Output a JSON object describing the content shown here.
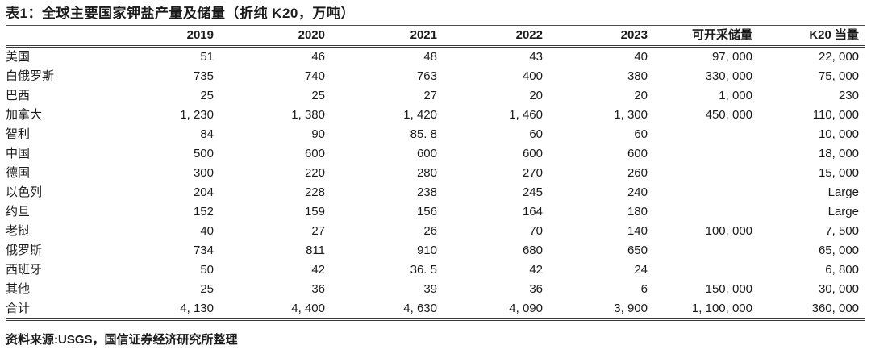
{
  "title": "表1：全球主要国家钾盐产量及储量（折纯 K20，万吨）",
  "source_note": "资料来源:USGS，国信证券经济研究所整理",
  "table": {
    "columns": [
      "",
      "2019",
      "2020",
      "2021",
      "2022",
      "2023",
      "可开采储量",
      "K20 当量"
    ],
    "rows": [
      {
        "name": "美国",
        "values": [
          "51",
          "46",
          "48",
          "43",
          "40",
          "97, 000",
          "22, 000"
        ]
      },
      {
        "name": "白俄罗斯",
        "values": [
          "735",
          "740",
          "763",
          "400",
          "380",
          "330, 000",
          "75, 000"
        ]
      },
      {
        "name": "巴西",
        "values": [
          "25",
          "25",
          "27",
          "20",
          "20",
          "1, 000",
          "230"
        ]
      },
      {
        "name": "加拿大",
        "values": [
          "1, 230",
          "1, 380",
          "1, 420",
          "1, 460",
          "1, 300",
          "450, 000",
          "110, 000"
        ]
      },
      {
        "name": "智利",
        "values": [
          "84",
          "90",
          "85. 8",
          "60",
          "60",
          "",
          "10, 000"
        ]
      },
      {
        "name": "中国",
        "values": [
          "500",
          "600",
          "600",
          "600",
          "600",
          "",
          "18, 000"
        ]
      },
      {
        "name": "德国",
        "values": [
          "300",
          "220",
          "280",
          "270",
          "260",
          "",
          "15, 000"
        ]
      },
      {
        "name": "以色列",
        "values": [
          "204",
          "228",
          "238",
          "245",
          "240",
          "",
          "Large"
        ]
      },
      {
        "name": "约旦",
        "values": [
          "152",
          "159",
          "156",
          "164",
          "180",
          "",
          "Large"
        ]
      },
      {
        "name": "老挝",
        "values": [
          "40",
          "27",
          "26",
          "70",
          "140",
          "100, 000",
          "7, 500"
        ]
      },
      {
        "name": "俄罗斯",
        "values": [
          "734",
          "811",
          "910",
          "680",
          "650",
          "",
          "65, 000"
        ]
      },
      {
        "name": "西班牙",
        "values": [
          "50",
          "42",
          "36. 5",
          "42",
          "24",
          "",
          "6, 800"
        ]
      },
      {
        "name": "其他",
        "values": [
          "25",
          "36",
          "39",
          "36",
          "6",
          "150, 000",
          "30, 000"
        ]
      },
      {
        "name": "合计",
        "values": [
          "4, 130",
          "4, 400",
          "4, 630",
          "4, 090",
          "3, 900",
          "1, 100, 000",
          "360, 000"
        ]
      }
    ]
  },
  "colors": {
    "text": "#1b1b1b",
    "rule": "#3a3a3a",
    "background": "#ffffff"
  }
}
